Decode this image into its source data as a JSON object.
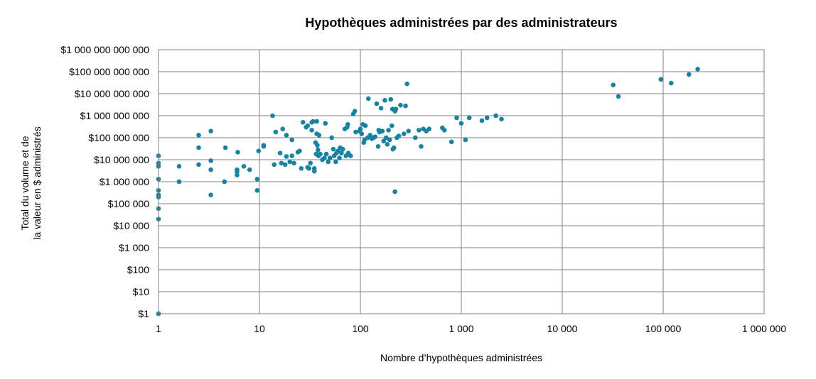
{
  "chart_data": {
    "type": "scatter",
    "title": "Hypothèques administrées par des administrateurs",
    "xlabel": "Nombre d’hypothèques administrées",
    "ylabel": [
      "Total du volume et de",
      "la valeur en $ administrés"
    ],
    "x_scale": "log",
    "y_scale": "log",
    "xlim": [
      1,
      1000000
    ],
    "ylim": [
      1,
      1000000000000
    ],
    "grid": true,
    "colors": {
      "points": "#1a82a0",
      "grid": "#808080"
    },
    "x_ticks": [
      {
        "value": 1,
        "label": "1"
      },
      {
        "value": 10,
        "label": "10"
      },
      {
        "value": 100,
        "label": "100"
      },
      {
        "value": 1000,
        "label": "1 000"
      },
      {
        "value": 10000,
        "label": "10 000"
      },
      {
        "value": 100000,
        "label": "100 000"
      },
      {
        "value": 1000000,
        "label": "1 000 000"
      }
    ],
    "y_ticks": [
      {
        "value": 1,
        "label": "$1"
      },
      {
        "value": 10,
        "label": "$10"
      },
      {
        "value": 100,
        "label": "$100"
      },
      {
        "value": 1000,
        "label": "$1 000"
      },
      {
        "value": 10000,
        "label": "$10 000"
      },
      {
        "value": 100000,
        "label": "$100 000"
      },
      {
        "value": 1000000,
        "label": "$1 000 000"
      },
      {
        "value": 10000000,
        "label": "$10 000 000"
      },
      {
        "value": 100000000,
        "label": "$100 000 000"
      },
      {
        "value": 1000000000,
        "label": "$1 000 000 000"
      },
      {
        "value": 10000000000,
        "label": "$10 000 000 000"
      },
      {
        "value": 100000000000,
        "label": "$100 000 000 000"
      },
      {
        "value": 1000000000000,
        "label": "$1 000 000 000 000"
      }
    ],
    "points": [
      {
        "x": 1,
        "y": 1
      },
      {
        "x": 1,
        "y": 20000
      },
      {
        "x": 1,
        "y": 60000
      },
      {
        "x": 1,
        "y": 200000
      },
      {
        "x": 1,
        "y": 250000
      },
      {
        "x": 1,
        "y": 400000
      },
      {
        "x": 1,
        "y": 1300000
      },
      {
        "x": 1,
        "y": 5000000
      },
      {
        "x": 1,
        "y": 7000000
      },
      {
        "x": 1,
        "y": 15000000
      },
      {
        "x": 1.6,
        "y": 1000000
      },
      {
        "x": 1.6,
        "y": 5000000
      },
      {
        "x": 2.5,
        "y": 6000000
      },
      {
        "x": 2.5,
        "y": 35000000
      },
      {
        "x": 2.5,
        "y": 130000000
      },
      {
        "x": 3.3,
        "y": 250000
      },
      {
        "x": 3.3,
        "y": 3500000
      },
      {
        "x": 3.3,
        "y": 9000000
      },
      {
        "x": 3.3,
        "y": 200000000
      },
      {
        "x": 4.5,
        "y": 1000000
      },
      {
        "x": 4.6,
        "y": 35000000
      },
      {
        "x": 6,
        "y": 2000000
      },
      {
        "x": 6,
        "y": 2800000
      },
      {
        "x": 6,
        "y": 3500000
      },
      {
        "x": 6.1,
        "y": 22000000
      },
      {
        "x": 7,
        "y": 5000000
      },
      {
        "x": 8,
        "y": 3500000
      },
      {
        "x": 9.5,
        "y": 400000
      },
      {
        "x": 9.5,
        "y": 1300000
      },
      {
        "x": 9.8,
        "y": 25000000
      },
      {
        "x": 11,
        "y": 40000000
      },
      {
        "x": 11,
        "y": 45000000
      },
      {
        "x": 13.5,
        "y": 1000000000
      },
      {
        "x": 14,
        "y": 6000000
      },
      {
        "x": 14.5,
        "y": 180000000
      },
      {
        "x": 16,
        "y": 20000000
      },
      {
        "x": 16.5,
        "y": 7000000
      },
      {
        "x": 17,
        "y": 250000000
      },
      {
        "x": 18,
        "y": 6000000
      },
      {
        "x": 18.5,
        "y": 14000000
      },
      {
        "x": 18.5,
        "y": 130000000
      },
      {
        "x": 20,
        "y": 8000000
      },
      {
        "x": 21,
        "y": 15000000
      },
      {
        "x": 21,
        "y": 80000000
      },
      {
        "x": 22,
        "y": 7000000
      },
      {
        "x": 24,
        "y": 22000000
      },
      {
        "x": 25,
        "y": 25000000
      },
      {
        "x": 26,
        "y": 4000000
      },
      {
        "x": 27,
        "y": 500000000
      },
      {
        "x": 29,
        "y": 300000000
      },
      {
        "x": 30,
        "y": 350000000
      },
      {
        "x": 30,
        "y": 4500000
      },
      {
        "x": 31,
        "y": 4000000
      },
      {
        "x": 32,
        "y": 7000000
      },
      {
        "x": 33,
        "y": 500000000
      },
      {
        "x": 33,
        "y": 220000000
      },
      {
        "x": 34,
        "y": 550000000
      },
      {
        "x": 35,
        "y": 4000000
      },
      {
        "x": 35,
        "y": 3000000
      },
      {
        "x": 36,
        "y": 60000000
      },
      {
        "x": 36.5,
        "y": 18000000
      },
      {
        "x": 37,
        "y": 550000000
      },
      {
        "x": 37,
        "y": 150000000
      },
      {
        "x": 37.5,
        "y": 45000000
      },
      {
        "x": 38,
        "y": 28000000
      },
      {
        "x": 38.5,
        "y": 15000000
      },
      {
        "x": 39,
        "y": 130000000
      },
      {
        "x": 40,
        "y": 18000000
      },
      {
        "x": 42,
        "y": 10000000
      },
      {
        "x": 44,
        "y": 12000000
      },
      {
        "x": 45,
        "y": 450000000
      },
      {
        "x": 46,
        "y": 18000000
      },
      {
        "x": 48,
        "y": 8000000
      },
      {
        "x": 50,
        "y": 12000000
      },
      {
        "x": 52,
        "y": 100000000
      },
      {
        "x": 54,
        "y": 30000000
      },
      {
        "x": 55,
        "y": 15000000
      },
      {
        "x": 57,
        "y": 8000000
      },
      {
        "x": 58,
        "y": 20000000
      },
      {
        "x": 60,
        "y": 25000000
      },
      {
        "x": 62,
        "y": 12000000
      },
      {
        "x": 63,
        "y": 35000000
      },
      {
        "x": 65,
        "y": 20000000
      },
      {
        "x": 67,
        "y": 30000000
      },
      {
        "x": 70,
        "y": 250000000
      },
      {
        "x": 72,
        "y": 15000000
      },
      {
        "x": 74,
        "y": 300000000
      },
      {
        "x": 75,
        "y": 400000000
      },
      {
        "x": 76,
        "y": 20000000
      },
      {
        "x": 80,
        "y": 15000000
      },
      {
        "x": 85,
        "y": 1200000000
      },
      {
        "x": 88,
        "y": 1600000000
      },
      {
        "x": 90,
        "y": 180000000
      },
      {
        "x": 98,
        "y": 200000000
      },
      {
        "x": 100,
        "y": 250000000
      },
      {
        "x": 103,
        "y": 150000000
      },
      {
        "x": 106,
        "y": 400000000
      },
      {
        "x": 108,
        "y": 60000000
      },
      {
        "x": 110,
        "y": 80000000
      },
      {
        "x": 112,
        "y": 350000000
      },
      {
        "x": 118,
        "y": 100000000
      },
      {
        "x": 120,
        "y": 6000000000
      },
      {
        "x": 125,
        "y": 130000000
      },
      {
        "x": 130,
        "y": 90000000
      },
      {
        "x": 135,
        "y": 100000000
      },
      {
        "x": 140,
        "y": 110000000
      },
      {
        "x": 145,
        "y": 3500000000
      },
      {
        "x": 150,
        "y": 40000000
      },
      {
        "x": 152,
        "y": 220000000
      },
      {
        "x": 155,
        "y": 180000000
      },
      {
        "x": 160,
        "y": 2200000000
      },
      {
        "x": 165,
        "y": 200000000
      },
      {
        "x": 170,
        "y": 70000000
      },
      {
        "x": 175,
        "y": 5000000000
      },
      {
        "x": 180,
        "y": 100000000
      },
      {
        "x": 185,
        "y": 50000000
      },
      {
        "x": 190,
        "y": 220000000
      },
      {
        "x": 195,
        "y": 80000000
      },
      {
        "x": 200,
        "y": 5500000000
      },
      {
        "x": 205,
        "y": 350000000
      },
      {
        "x": 208,
        "y": 2000000000
      },
      {
        "x": 210,
        "y": 30000000
      },
      {
        "x": 215,
        "y": 35000000
      },
      {
        "x": 220,
        "y": 1600000000
      },
      {
        "x": 225,
        "y": 2000000000
      },
      {
        "x": 220,
        "y": 350000
      },
      {
        "x": 230,
        "y": 100000000
      },
      {
        "x": 240,
        "y": 120000000
      },
      {
        "x": 250,
        "y": 3000000000
      },
      {
        "x": 270,
        "y": 150000000
      },
      {
        "x": 280,
        "y": 2800000000
      },
      {
        "x": 290,
        "y": 28000000000
      },
      {
        "x": 300,
        "y": 200000000
      },
      {
        "x": 350,
        "y": 100000000
      },
      {
        "x": 380,
        "y": 220000000
      },
      {
        "x": 400,
        "y": 40000000
      },
      {
        "x": 420,
        "y": 250000000
      },
      {
        "x": 450,
        "y": 200000000
      },
      {
        "x": 480,
        "y": 250000000
      },
      {
        "x": 650,
        "y": 280000000
      },
      {
        "x": 680,
        "y": 220000000
      },
      {
        "x": 800,
        "y": 65000000
      },
      {
        "x": 900,
        "y": 800000000
      },
      {
        "x": 1000,
        "y": 450000000
      },
      {
        "x": 1100,
        "y": 80000000
      },
      {
        "x": 1200,
        "y": 800000000
      },
      {
        "x": 1600,
        "y": 600000000
      },
      {
        "x": 1800,
        "y": 800000000
      },
      {
        "x": 2200,
        "y": 1000000000
      },
      {
        "x": 2500,
        "y": 700000000
      },
      {
        "x": 32000,
        "y": 25000000000
      },
      {
        "x": 36000,
        "y": 7500000000
      },
      {
        "x": 95000,
        "y": 45000000000
      },
      {
        "x": 120000,
        "y": 30000000000
      },
      {
        "x": 180000,
        "y": 75000000000
      },
      {
        "x": 220000,
        "y": 130000000000
      }
    ]
  }
}
